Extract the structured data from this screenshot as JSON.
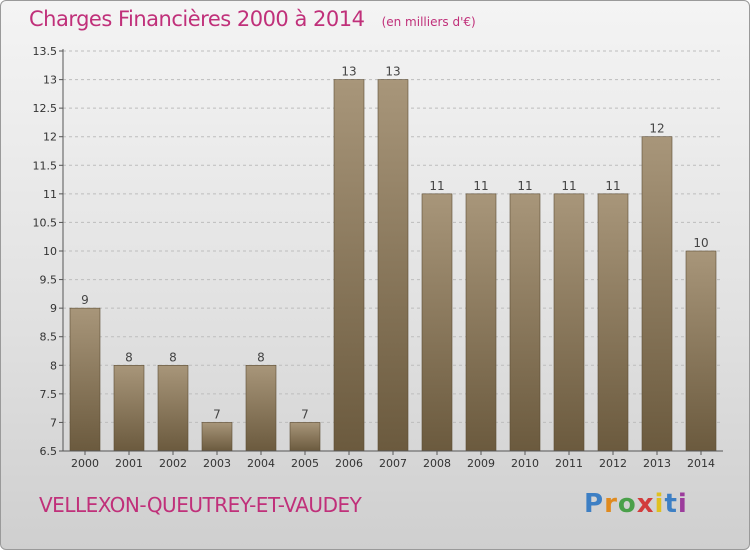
{
  "header": {
    "title": "Charges Financières 2000 à 2014",
    "unit": "(en milliers d'€)"
  },
  "footer": {
    "commune": "VELLEXON-QUEUTREY-ET-VAUDEY",
    "logo": "Proxiti",
    "logo_colors": [
      "#3d7fc4",
      "#e08a1e",
      "#4aa04a",
      "#d23c3c",
      "#e0c020",
      "#3d7fc4",
      "#9c3c9c"
    ]
  },
  "colors": {
    "bar_top": "#a8967a",
    "bar_bottom": "#6b5a3e",
    "axis_text": "#333333",
    "grid": "#bdbdbd"
  },
  "chart_data": {
    "type": "bar",
    "title": "Charges Financières 2000 à 2014",
    "subtitle": "(en milliers d'€)",
    "categories": [
      "2000",
      "2001",
      "2002",
      "2003",
      "2004",
      "2005",
      "2006",
      "2007",
      "2008",
      "2009",
      "2010",
      "2011",
      "2012",
      "2013",
      "2014"
    ],
    "values": [
      9,
      8,
      8,
      7,
      8,
      7,
      13,
      13,
      11,
      11,
      11,
      11,
      11,
      12,
      10
    ],
    "data_labels": [
      "9",
      "8",
      "8",
      "7",
      "8",
      "7",
      "13",
      "13",
      "11",
      "11",
      "11",
      "11",
      "11",
      "12",
      "10"
    ],
    "ylim": [
      6.5,
      13.5
    ],
    "yticks": [
      6.5,
      7,
      7.5,
      8,
      8.5,
      9,
      9.5,
      10,
      10.5,
      11,
      11.5,
      12,
      12.5,
      13,
      13.5
    ],
    "ytick_labels": [
      "6.5",
      "7",
      "7.5",
      "8",
      "8.5",
      "9",
      "9.5",
      "10",
      "10.5",
      "11",
      "11.5",
      "12",
      "12.5",
      "13",
      "13.5"
    ],
    "grid": true,
    "xlabel": "",
    "ylabel": ""
  }
}
